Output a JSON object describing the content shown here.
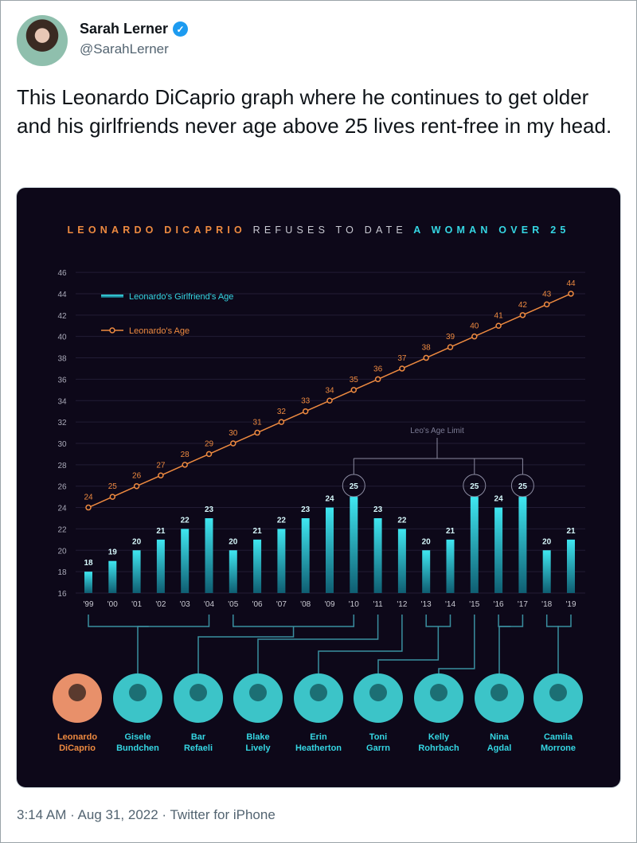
{
  "tweet": {
    "author_name": "Sarah Lerner",
    "handle": "@SarahLerner",
    "verified_icon": "verified-badge-icon",
    "text": "This Leonardo DiCaprio graph where he continues to get older and his girlfriends never age above 25 lives rent-free in my head.",
    "footer": "3:14 AM · Aug 31, 2022 · Twitter for iPhone"
  },
  "colors": {
    "orange": "#ee8a40",
    "cyan": "#35d6e3",
    "background": "#0d0819"
  },
  "chart_data": {
    "type": "bar",
    "title_parts": [
      "LEONARDO DICAPRIO",
      "REFUSES TO DATE",
      "A WOMAN OVER 25"
    ],
    "categories": [
      "'99",
      "'00",
      "'01",
      "'02",
      "'03",
      "'04",
      "'05",
      "'06",
      "'07",
      "'08",
      "'09",
      "'10",
      "'11",
      "'12",
      "'13",
      "'14",
      "'15",
      "'16",
      "'17",
      "'18",
      "'19"
    ],
    "series": [
      {
        "name": "Leonardo's Girlfriend's Age",
        "type": "bar",
        "values": [
          18,
          19,
          20,
          21,
          22,
          23,
          20,
          21,
          22,
          23,
          24,
          25,
          23,
          22,
          20,
          21,
          25,
          24,
          25,
          20,
          21
        ]
      },
      {
        "name": "Leonardo's Age",
        "type": "line",
        "values": [
          24,
          25,
          26,
          27,
          28,
          29,
          30,
          31,
          32,
          33,
          34,
          35,
          36,
          37,
          38,
          39,
          40,
          41,
          42,
          43,
          44
        ]
      }
    ],
    "yticks": [
      16,
      18,
      20,
      22,
      24,
      26,
      28,
      30,
      32,
      34,
      36,
      38,
      40,
      42,
      44,
      46
    ],
    "ylim": [
      16,
      46
    ],
    "grid": true,
    "legend_position": "top-left",
    "annotation": {
      "label": "Leo's Age Limit",
      "years": [
        "'10",
        "'15",
        "'17"
      ]
    },
    "girlfriends": [
      {
        "name": [
          "Leonardo",
          "DiCaprio"
        ],
        "years": []
      },
      {
        "name": [
          "Gisele",
          "Bundchen"
        ],
        "years": [
          0,
          5
        ]
      },
      {
        "name": [
          "Bar",
          "Refaeli"
        ],
        "years": [
          6,
          11
        ]
      },
      {
        "name": [
          "Blake",
          "Lively"
        ],
        "years": [
          12,
          12
        ]
      },
      {
        "name": [
          "Erin",
          "Heatherton"
        ],
        "years": [
          13,
          13
        ]
      },
      {
        "name": [
          "Toni",
          "Garrn"
        ],
        "years": [
          14,
          15
        ]
      },
      {
        "name": [
          "Kelly",
          "Rohrbach"
        ],
        "years": [
          16,
          16
        ]
      },
      {
        "name": [
          "Nina",
          "Agdal"
        ],
        "years": [
          17,
          18
        ]
      },
      {
        "name": [
          "Camila",
          "Morrone"
        ],
        "years": [
          19,
          20
        ]
      }
    ]
  }
}
